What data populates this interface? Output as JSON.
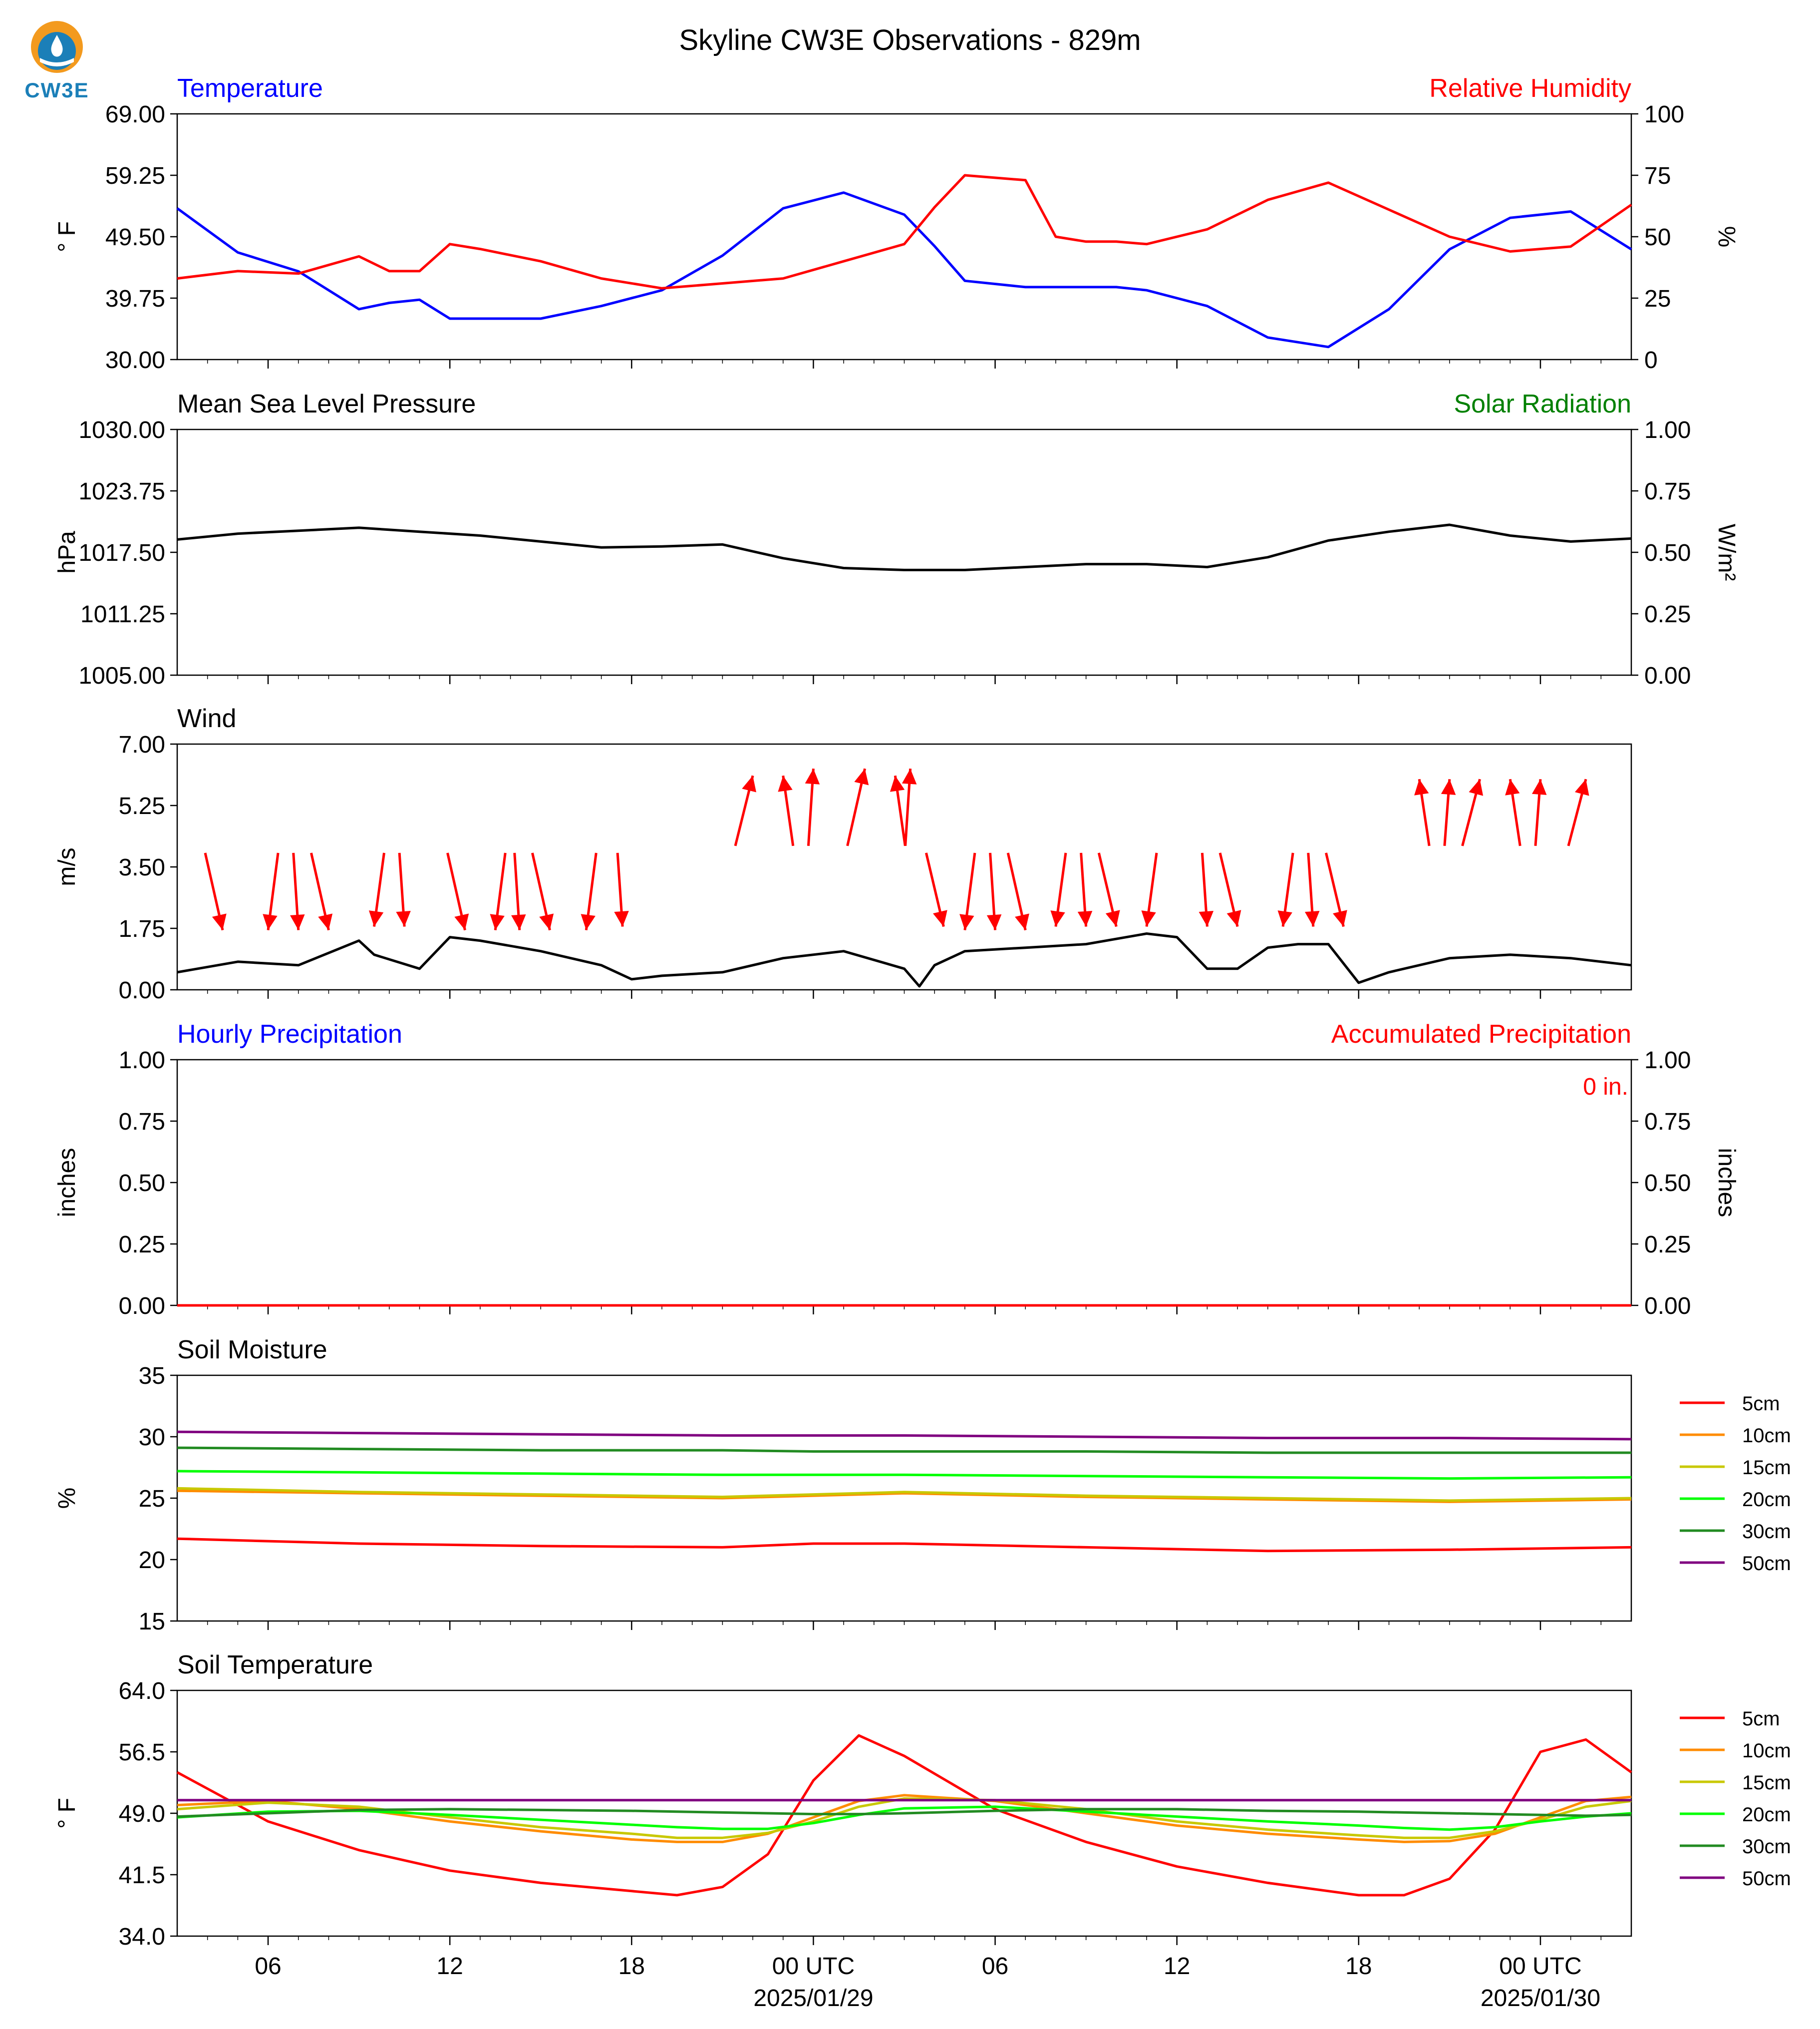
{
  "header": {
    "title": "Skyline CW3E Observations - 829m",
    "logo_text": "CW3E"
  },
  "x_axis": {
    "tick_labels": [
      "06",
      "12",
      "18",
      "00 UTC",
      "06",
      "12",
      "18",
      "00 UTC"
    ],
    "date_labels": [
      "2025/01/29",
      "2025/01/30"
    ]
  },
  "chart_data": [
    {
      "type": "line",
      "panel": "temperature",
      "left_title": "Temperature",
      "right_title": "Relative Humidity",
      "ylabel_left": "° F",
      "ylabel_right": "%",
      "ylim_left": [
        30,
        69
      ],
      "ylim_right": [
        0,
        100
      ],
      "yticks_left": [
        "30.00",
        "39.75",
        "49.50",
        "59.25",
        "69.00"
      ],
      "yticks_right": [
        "0",
        "25",
        "50",
        "75",
        "100"
      ],
      "x_hours": [
        0,
        2,
        4,
        6,
        7,
        8,
        9,
        10,
        12,
        14,
        16,
        18,
        20,
        22,
        24,
        25,
        26,
        28,
        29,
        30,
        31,
        32,
        34,
        36,
        38,
        40,
        42,
        44,
        46,
        48
      ],
      "series": [
        {
          "name": "Temperature",
          "axis": "left",
          "color": "#0000ff",
          "values": [
            54,
            47,
            44,
            38,
            39,
            39.5,
            36.5,
            36.5,
            36.5,
            38.5,
            41,
            46.5,
            54,
            56.5,
            53,
            48,
            42.5,
            41.5,
            41.5,
            41.5,
            41.5,
            41,
            38.5,
            33.5,
            32,
            38,
            47.5,
            52.5,
            53.5,
            47.5
          ]
        },
        {
          "name": "Relative Humidity",
          "axis": "right",
          "color": "#ff0000",
          "values": [
            33,
            36,
            35,
            42,
            36,
            36,
            47,
            45,
            40,
            33,
            29,
            31,
            33,
            40,
            47,
            62,
            75,
            73,
            50,
            48,
            48,
            47,
            53,
            65,
            72,
            61,
            50,
            44,
            46,
            63
          ]
        }
      ]
    },
    {
      "type": "line",
      "panel": "pressure",
      "left_title": "Mean Sea Level Pressure",
      "right_title": "Solar Radiation",
      "ylabel_left": "hPa",
      "ylabel_right": "W/m²",
      "ylim_left": [
        1005,
        1030
      ],
      "ylim_right": [
        0,
        1
      ],
      "yticks_left": [
        "1005.00",
        "1011.25",
        "1017.50",
        "1023.75",
        "1030.00"
      ],
      "yticks_right": [
        "0.00",
        "0.25",
        "0.50",
        "0.75",
        "1.00"
      ],
      "x_hours": [
        0,
        2,
        4,
        6,
        8,
        10,
        12,
        14,
        16,
        18,
        20,
        22,
        24,
        26,
        28,
        30,
        32,
        34,
        36,
        38,
        40,
        42,
        44,
        46,
        48
      ],
      "series": [
        {
          "name": "Mean Sea Level Pressure",
          "axis": "left",
          "color": "#000000",
          "values": [
            1018.8,
            1019.4,
            1019.7,
            1020.0,
            1019.6,
            1019.2,
            1018.6,
            1018.0,
            1018.1,
            1018.3,
            1016.9,
            1015.9,
            1015.7,
            1015.7,
            1016.0,
            1016.3,
            1016.3,
            1016.0,
            1017.0,
            1018.7,
            1019.6,
            1020.3,
            1019.2,
            1018.6,
            1018.9
          ]
        }
      ]
    },
    {
      "type": "line",
      "panel": "wind",
      "left_title": "Wind",
      "ylabel_left": "m/s",
      "ylim_left": [
        0,
        7
      ],
      "yticks_left": [
        "0.00",
        "1.75",
        "3.50",
        "5.25",
        "7.00"
      ],
      "x_hours": [
        0,
        2,
        4,
        6,
        6.5,
        8,
        9,
        10,
        12,
        14,
        15,
        16,
        18,
        20,
        22,
        24,
        24.5,
        25,
        26,
        28,
        30,
        32,
        33,
        34,
        35,
        36,
        37,
        38,
        39,
        40,
        42,
        44,
        46,
        48
      ],
      "series": [
        {
          "name": "Wind speed",
          "axis": "left",
          "color": "#000000",
          "values": [
            0.5,
            0.8,
            0.7,
            1.4,
            1.0,
            0.6,
            1.5,
            1.4,
            1.1,
            0.7,
            0.3,
            0.4,
            0.5,
            0.9,
            1.1,
            0.6,
            0.1,
            0.7,
            1.1,
            1.2,
            1.3,
            1.6,
            1.5,
            0.6,
            0.6,
            1.2,
            1.3,
            1.3,
            0.2,
            0.5,
            0.9,
            1.0,
            0.9,
            0.7
          ]
        }
      ],
      "arrows": [
        {
          "x_hour": 1.5,
          "speed": 1.7,
          "dir": "down"
        },
        {
          "x_hour": 3.0,
          "speed": 1.7,
          "dir": "down"
        },
        {
          "x_hour": 4.0,
          "speed": 1.7,
          "dir": "down"
        },
        {
          "x_hour": 5.0,
          "speed": 1.7,
          "dir": "down"
        },
        {
          "x_hour": 6.5,
          "speed": 1.8,
          "dir": "down"
        },
        {
          "x_hour": 7.5,
          "speed": 1.8,
          "dir": "down"
        },
        {
          "x_hour": 9.5,
          "speed": 1.7,
          "dir": "down"
        },
        {
          "x_hour": 10.5,
          "speed": 1.7,
          "dir": "down"
        },
        {
          "x_hour": 11.3,
          "speed": 1.7,
          "dir": "down"
        },
        {
          "x_hour": 12.3,
          "speed": 1.7,
          "dir": "down"
        },
        {
          "x_hour": 13.5,
          "speed": 1.7,
          "dir": "down"
        },
        {
          "x_hour": 14.7,
          "speed": 1.8,
          "dir": "down"
        },
        {
          "x_hour": 19.0,
          "speed": 6.1,
          "dir": "up"
        },
        {
          "x_hour": 20.0,
          "speed": 6.1,
          "dir": "up"
        },
        {
          "x_hour": 21.0,
          "speed": 6.3,
          "dir": "up"
        },
        {
          "x_hour": 22.7,
          "speed": 6.3,
          "dir": "up"
        },
        {
          "x_hour": 23.7,
          "speed": 6.1,
          "dir": "up"
        },
        {
          "x_hour": 24.2,
          "speed": 6.3,
          "dir": "up"
        },
        {
          "x_hour": 25.3,
          "speed": 1.8,
          "dir": "down"
        },
        {
          "x_hour": 26.0,
          "speed": 1.7,
          "dir": "down"
        },
        {
          "x_hour": 27.0,
          "speed": 1.7,
          "dir": "down"
        },
        {
          "x_hour": 28.0,
          "speed": 1.7,
          "dir": "down"
        },
        {
          "x_hour": 29.0,
          "speed": 1.8,
          "dir": "down"
        },
        {
          "x_hour": 30.0,
          "speed": 1.8,
          "dir": "down"
        },
        {
          "x_hour": 31.0,
          "speed": 1.8,
          "dir": "down"
        },
        {
          "x_hour": 32.0,
          "speed": 1.8,
          "dir": "down"
        },
        {
          "x_hour": 34.0,
          "speed": 1.8,
          "dir": "down"
        },
        {
          "x_hour": 35.0,
          "speed": 1.8,
          "dir": "down"
        },
        {
          "x_hour": 36.5,
          "speed": 1.8,
          "dir": "down"
        },
        {
          "x_hour": 37.5,
          "speed": 1.8,
          "dir": "down"
        },
        {
          "x_hour": 38.5,
          "speed": 1.8,
          "dir": "down"
        },
        {
          "x_hour": 41.0,
          "speed": 6.0,
          "dir": "up"
        },
        {
          "x_hour": 42.0,
          "speed": 6.0,
          "dir": "up"
        },
        {
          "x_hour": 43.0,
          "speed": 6.0,
          "dir": "up"
        },
        {
          "x_hour": 44.0,
          "speed": 6.0,
          "dir": "up"
        },
        {
          "x_hour": 45.0,
          "speed": 6.0,
          "dir": "up"
        },
        {
          "x_hour": 46.5,
          "speed": 6.0,
          "dir": "up"
        }
      ]
    },
    {
      "type": "line",
      "panel": "precipitation",
      "left_title": "Hourly Precipitation",
      "right_title": "Accumulated Precipitation",
      "annotation": "0 in.",
      "ylabel_left": "inches",
      "ylabel_right": "inches",
      "ylim_left": [
        0,
        1
      ],
      "ylim_right": [
        0,
        1
      ],
      "yticks_left": [
        "0.00",
        "0.25",
        "0.50",
        "0.75",
        "1.00"
      ],
      "yticks_right": [
        "0.00",
        "0.25",
        "0.50",
        "0.75",
        "1.00"
      ],
      "x_hours": [
        0,
        48
      ],
      "series": [
        {
          "name": "Accumulated Precipitation",
          "axis": "left",
          "color": "#ff0000",
          "values": [
            0,
            0
          ]
        }
      ]
    },
    {
      "type": "line",
      "panel": "soil_moisture",
      "left_title": "Soil Moisture",
      "ylabel_left": "%",
      "ylim_left": [
        15,
        35
      ],
      "yticks_left": [
        "15",
        "20",
        "25",
        "30",
        "35"
      ],
      "legend": "right",
      "x_hours": [
        0,
        6,
        12,
        18,
        21,
        24,
        30,
        36,
        42,
        48
      ],
      "series": [
        {
          "name": "5cm",
          "color": "#ff0000",
          "values": [
            21.7,
            21.3,
            21.1,
            21.0,
            21.3,
            21.3,
            21.0,
            20.7,
            20.8,
            21.0
          ]
        },
        {
          "name": "10cm",
          "color": "#ff8c00",
          "values": [
            25.6,
            25.4,
            25.2,
            25.0,
            25.2,
            25.4,
            25.1,
            24.9,
            24.7,
            24.9
          ]
        },
        {
          "name": "15cm",
          "color": "#c8c800",
          "values": [
            25.8,
            25.5,
            25.3,
            25.1,
            25.3,
            25.5,
            25.2,
            25.0,
            24.8,
            25.0
          ]
        },
        {
          "name": "20cm",
          "color": "#00ff00",
          "values": [
            27.2,
            27.1,
            27.0,
            26.9,
            26.9,
            26.9,
            26.8,
            26.7,
            26.6,
            26.7
          ]
        },
        {
          "name": "30cm",
          "color": "#228b22",
          "values": [
            29.1,
            29.0,
            28.9,
            28.9,
            28.8,
            28.8,
            28.8,
            28.7,
            28.7,
            28.7
          ]
        },
        {
          "name": "50cm",
          "color": "#800080",
          "values": [
            30.4,
            30.3,
            30.2,
            30.1,
            30.1,
            30.1,
            30.0,
            29.9,
            29.9,
            29.8
          ]
        }
      ]
    },
    {
      "type": "line",
      "panel": "soil_temperature",
      "left_title": "Soil Temperature",
      "ylabel_left": "° F",
      "ylim_left": [
        34,
        64
      ],
      "yticks_left": [
        "34.0",
        "41.5",
        "49.0",
        "56.5",
        "64.0"
      ],
      "legend": "right",
      "x_hours": [
        0,
        3,
        6,
        9,
        12,
        15,
        16.5,
        18,
        19.5,
        21,
        22.5,
        24,
        27,
        30,
        33,
        36,
        39,
        40.5,
        42,
        43.5,
        45,
        46.5,
        48
      ],
      "series": [
        {
          "name": "5cm",
          "color": "#ff0000",
          "values": [
            54.0,
            48.0,
            44.5,
            42.0,
            40.5,
            39.5,
            39.0,
            40.0,
            44.0,
            53.0,
            58.5,
            56.0,
            49.5,
            45.5,
            42.5,
            40.5,
            39.0,
            39.0,
            41.0,
            47.0,
            56.5,
            58.0,
            54.0
          ]
        },
        {
          "name": "10cm",
          "color": "#ff8c00",
          "values": [
            50.0,
            50.5,
            49.5,
            48.0,
            46.8,
            45.8,
            45.5,
            45.5,
            46.5,
            48.5,
            50.5,
            51.2,
            50.5,
            49.0,
            47.5,
            46.5,
            45.8,
            45.5,
            45.6,
            46.5,
            48.5,
            50.5,
            51.0
          ]
        },
        {
          "name": "15cm",
          "color": "#c8c800",
          "values": [
            49.5,
            50.3,
            49.8,
            48.5,
            47.3,
            46.5,
            46.0,
            46.0,
            46.6,
            48.0,
            49.8,
            50.8,
            50.6,
            49.5,
            48.0,
            47.0,
            46.3,
            46.0,
            46.0,
            46.8,
            48.2,
            49.8,
            50.5
          ]
        },
        {
          "name": "20cm",
          "color": "#00ff00",
          "values": [
            48.5,
            49.2,
            49.3,
            48.8,
            48.2,
            47.6,
            47.3,
            47.1,
            47.1,
            47.8,
            48.8,
            49.6,
            49.8,
            49.2,
            48.6,
            48.0,
            47.5,
            47.2,
            47.0,
            47.3,
            48.0,
            48.6,
            49.0
          ]
        },
        {
          "name": "30cm",
          "color": "#228b22",
          "values": [
            48.6,
            49.0,
            49.4,
            49.5,
            49.4,
            49.3,
            49.2,
            49.1,
            49.0,
            48.9,
            48.9,
            49.0,
            49.3,
            49.5,
            49.5,
            49.3,
            49.2,
            49.1,
            49.0,
            48.9,
            48.8,
            48.7,
            48.8
          ]
        },
        {
          "name": "50cm",
          "color": "#800080",
          "values": [
            50.6,
            50.6,
            50.6,
            50.6,
            50.6,
            50.6,
            50.6,
            50.6,
            50.6,
            50.6,
            50.6,
            50.6,
            50.6,
            50.6,
            50.6,
            50.6,
            50.6,
            50.6,
            50.6,
            50.6,
            50.6,
            50.6,
            50.6
          ]
        }
      ]
    }
  ]
}
